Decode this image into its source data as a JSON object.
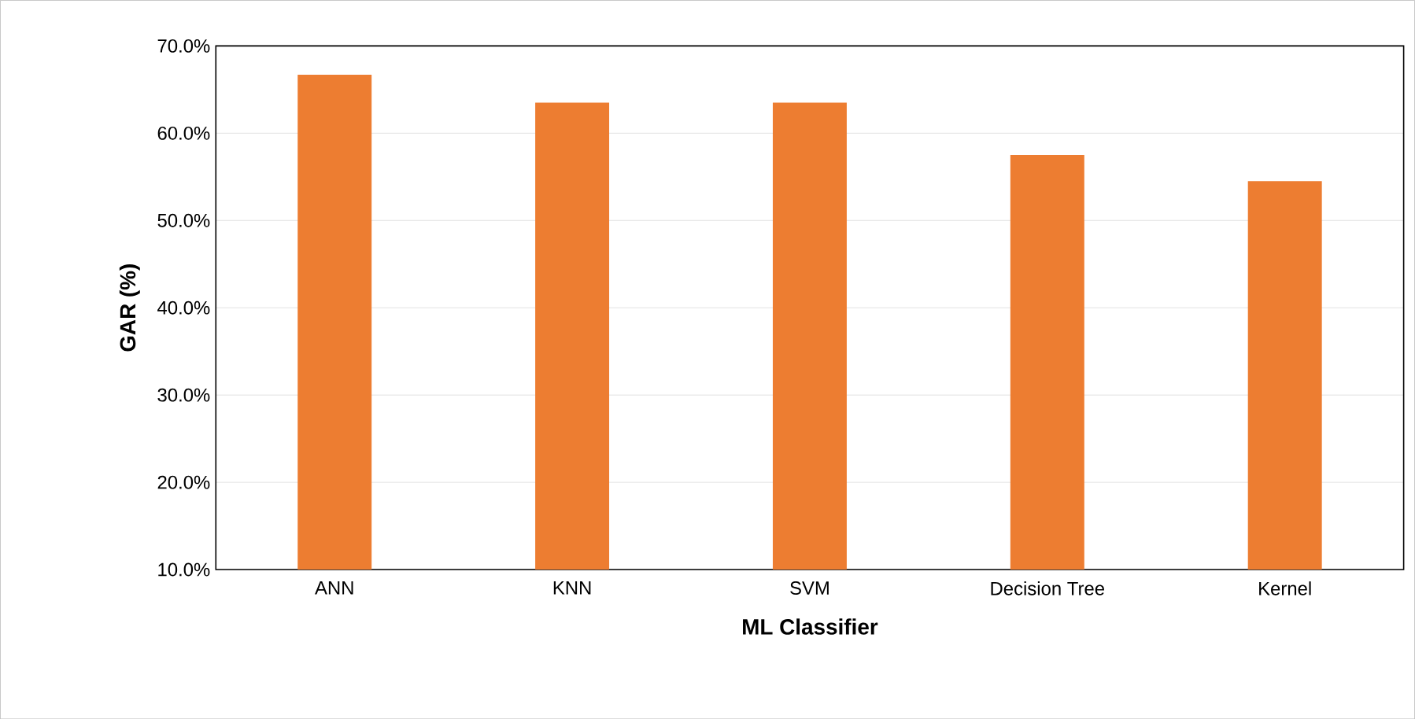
{
  "chart_data": {
    "type": "bar",
    "xlabel": "ML Classifier",
    "ylabel": "GAR (%)",
    "categories": [
      "ANN",
      "KNN",
      "SVM",
      "Decision Tree",
      "Kernel"
    ],
    "values": [
      66.7,
      63.5,
      63.5,
      57.5,
      54.5
    ],
    "color": "#ed7d31",
    "ylim": [
      10,
      70
    ],
    "yticks": [
      {
        "value": 10,
        "label": "10.0%"
      },
      {
        "value": 20,
        "label": "20.0%"
      },
      {
        "value": 30,
        "label": "30.0%"
      },
      {
        "value": 40,
        "label": "40.0%"
      },
      {
        "value": 50,
        "label": "50.0%"
      },
      {
        "value": 60,
        "label": "60.0%"
      },
      {
        "value": 70,
        "label": "70.0%"
      }
    ],
    "grid": "y"
  }
}
